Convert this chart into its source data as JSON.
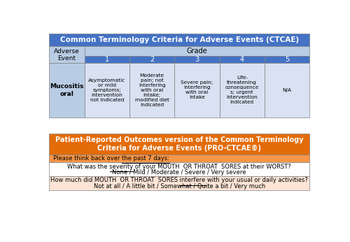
{
  "ctcae_title": "Common Terminology Criteria for Adverse Events (CTCAE)",
  "ctcae_header_bg": "#4472C4",
  "ctcae_header_text": "#FFFFFF",
  "ctcae_grade_bg": "#B8CCE4",
  "ctcae_subheader_bg": "#4472C4",
  "ctcae_subheader_text": "#FFFFFF",
  "ctcae_row_bg": "#D9E2F3",
  "ctcae_adverse_bg": "#B8CCE4",
  "adverse_event_label": "Adverse\nEvent",
  "grade_label": "Grade",
  "grades": [
    "1",
    "2",
    "3",
    "4",
    "5"
  ],
  "mucositis_label": "Mucositis\noral",
  "grade_descriptions": [
    "Asymptomatic\nor mild\nsymptoms;\nintervention\nnot indicated",
    "Moderate\npain; not\ninterfering\nwith oral\nintake;\nmodified diet\nindicated",
    "Severe pain;\ninterfering\nwith oral\nintake",
    "Life-\nthreatening\nconsequence\ns; urgent\nintervention\nindicated",
    "N/A"
  ],
  "pro_title_line1": "Patient-Reported Outcomes version of the Common Terminology",
  "pro_title_line2": "Criteria for Adverse Events (PRO-CTCAE®)",
  "pro_header_bg": "#E36C09",
  "pro_header_text": "#FFFFFF",
  "pro_orange_bg": "#F79646",
  "pro_light_bg": "#FCE4D6",
  "pro_white_bg": "#FFFFFF",
  "pro_row1_pre": "Please think back over ",
  "pro_row1_ul": "the past 7 days:",
  "pro_row2_line1_a": "What was the ",
  "pro_row2_line1_b": "severity",
  "pro_row2_line1_c": " of your MOUTH  OR THROAT  SORES at their WORST?",
  "pro_row2_line2": "None / Mild / Moderate / Severe / Very severe",
  "pro_row3_line1_a": "How much did MOUTH  OR THROAT  SORES ",
  "pro_row3_line1_b": "interfere",
  "pro_row3_line1_c": " with your usual or daily activities?",
  "pro_row3_line2": "Not at all / A little bit / Somewhat / Quite a bit / Very much",
  "fig_bg": "#FFFFFF",
  "border_color": "#808080"
}
